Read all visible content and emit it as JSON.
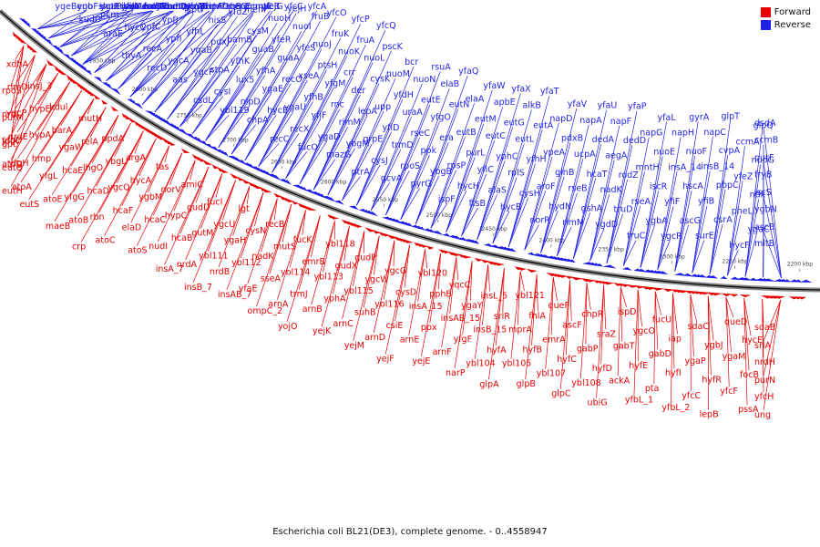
{
  "legend": {
    "forward_label": "Forward",
    "reverse_label": "Reverse",
    "forward_color": "#e60000",
    "reverse_color": "#1f1fe6"
  },
  "caption": "Escherichia coli BL21(DE3), complete genome. - 0..4558947",
  "scale_ticks": [
    "2850 kbp",
    "2800 kbp",
    "2750 kbp",
    "2700 kbp",
    "2650 kbp",
    "2600 kbp",
    "2550 kbp",
    "2500 kbp",
    "2450 kbp",
    "2400 kbp",
    "2350 kbp",
    "2300 kbp",
    "2250 kbp",
    "2200 kbp"
  ],
  "reverse_genes": [
    "yqeB",
    "kudD_2",
    "araE",
    "thyA",
    "recD",
    "aas",
    "csdL",
    "ybl119",
    "chpA",
    "recC",
    "fucO",
    "mazG",
    "ptrA",
    "gcvA",
    "pyrG",
    "ispF",
    "ftsB",
    "hycB",
    "norR",
    "rlmM",
    "ygdD",
    "truC",
    "ygcR",
    "surE",
    "hycF",
    "mltB",
    "eno",
    "pcm",
    "hycC",
    "recA",
    "ygcA",
    "ygcF",
    "cysI",
    "nlpD",
    "hycE",
    "recX",
    "ygaD",
    "ybgM",
    "cysJ",
    "rpoS",
    "ybgB",
    "hycH",
    "alaS",
    "cysH",
    "hydN",
    "gshA",
    "truD",
    "ygbA",
    "ascG",
    "csrA",
    "ygaC",
    "ascB",
    "ygbF",
    "ygaB",
    "ygbL",
    "ypfC",
    "ypfI",
    "yqaB",
    "stpA",
    "lux5",
    "ygaE",
    "ygaU",
    "yfjF",
    "rimM",
    "grpE",
    "trmD",
    "ppk",
    "rpsP",
    "yfiC",
    "rplS",
    "aroF",
    "rseB",
    "nadK",
    "rseA",
    "yfiF",
    "yfiB",
    "pheL",
    "ygbN",
    "shoB",
    "yfiH",
    "tadA",
    "ypfJ",
    "yfhL",
    "pdxJ",
    "yfhK",
    "yfhA",
    "recO",
    "yfhB",
    "rnc",
    "lepA",
    "yfiD",
    "rseC",
    "era",
    "purL",
    "yphC",
    "yfhH",
    "glnB",
    "hcaT",
    "rodZ",
    "iscR",
    "hscA",
    "pbpC",
    "ndk",
    "iscS",
    "iscU",
    "iscA",
    "hscB",
    "fdx",
    "ispG",
    "hisS",
    "bamB",
    "guaB",
    "guaA",
    "xseA",
    "yfgM",
    "der",
    "upp",
    "uraA",
    "yfgO",
    "eutB",
    "eutC",
    "eutL",
    "ypeA",
    "ucpA",
    "aegA",
    "mntH",
    "insA_14",
    "insB_14",
    "yfeZ",
    "fryB",
    "dapA",
    "eutP",
    "eutQ",
    "cysW",
    "zipA",
    "yfdZ",
    "cysM",
    "yfeR",
    "yfeS",
    "ptsH",
    "crr",
    "cysK",
    "yfdH",
    "eutE",
    "eutN",
    "eutM",
    "eutG",
    "eutA",
    "pdxB",
    "dedA",
    "dedD",
    "nuoE",
    "nuoF",
    "cvpA",
    "nuoG",
    "purF",
    "ubiX",
    "menD",
    "menH",
    "menB",
    "menC",
    "menE",
    "menF",
    "nuoH",
    "nuoI",
    "nuoJ",
    "nuoK",
    "nuoL",
    "nuoM",
    "nuoN",
    "elaB",
    "elaA",
    "apbE",
    "alkB",
    "napD",
    "napA",
    "napF",
    "napG",
    "napH",
    "napC",
    "ccmA",
    "ccmB",
    "ccmC",
    "ccmD",
    "ccmE",
    "ccmF",
    "ccmG",
    "ccmH",
    "yejG",
    "yejH",
    "fruB",
    "fruK",
    "fruA",
    "pscK",
    "bcr",
    "rsuA",
    "yfaQ",
    "yfaW",
    "yfaX",
    "yfaT",
    "yfaV",
    "yfaU",
    "yfaP",
    "yfaL",
    "gyrA",
    "glpT",
    "glpQ",
    "dsdA",
    "fadJ",
    "fadI",
    "yfcZ",
    "yfcJ",
    "fabB",
    "mnmC",
    "yfcB",
    "yfcC",
    "yfcA",
    "yfcO",
    "yfcP",
    "yfcQ"
  ],
  "forward_genes": [
    "xdhA",
    "insJ_3",
    "kdul",
    "mutH",
    "ppdA",
    "argA",
    "tas",
    "amiC",
    "fucI",
    "lgt",
    "recB",
    "fucK",
    "ybl118",
    "gudP",
    "ygcG",
    "ybl120",
    "yqcC",
    "insL_5",
    "ybl121",
    "queF",
    "chpR",
    "ispD",
    "fucU",
    "sdaC",
    "queD",
    "sdaB",
    "rlmD",
    "hypE",
    "barA",
    "relA",
    "ybgL",
    "hycA",
    "norV",
    "gudD",
    "ygcU",
    "cysN",
    "mutS",
    "emrB",
    "gudX",
    "ygcW",
    "cysD",
    "pphB",
    "ygaY",
    "srlR",
    "fhlA",
    "ascF",
    "sraZ",
    "ygcO",
    "iap",
    "ygbJ",
    "hycE",
    "srlA",
    "rpoS",
    "ygcP",
    "hypA",
    "ygaW",
    "lhgO",
    "ygcQ",
    "ygbM",
    "hypC",
    "gutM",
    "ygaH",
    "nadK",
    "ybl114",
    "ybl113",
    "ybl115",
    "ybl116",
    "insA_15",
    "insAB_15",
    "insB_15",
    "mprA",
    "emrA",
    "gabP",
    "gabT",
    "gabD",
    "ygaP",
    "ygaM",
    "nrdH",
    "nrdI",
    "nrdE",
    "hmp",
    "hcaE",
    "hcaD",
    "hcaF",
    "hcaC",
    "hcaB",
    "ybl111",
    "ybl112",
    "sseA",
    "trmJ",
    "yphA",
    "suhB",
    "csiE",
    "ppx",
    "yfgF",
    "hyfA",
    "hyfB",
    "hyfC",
    "hyfD",
    "hyfE",
    "hyfI",
    "hyfR",
    "focB",
    "purN",
    "purM",
    "yfgD",
    "yfgH",
    "yfgL",
    "yfgG",
    "rbn",
    "elaD",
    "nudI",
    "nrdA",
    "nrdB",
    "yfaE",
    "arnA",
    "arnB",
    "arnC",
    "arnD",
    "arnE",
    "arnF",
    "ybl104",
    "ybl105",
    "ybl107",
    "ybl108",
    "ackA",
    "pta",
    "yfcC",
    "yfcF",
    "yfcH",
    "folX",
    "atoD",
    "atoA",
    "atoE",
    "atoB",
    "atoC",
    "atoS",
    "insA_7",
    "insB_7",
    "insAB_7",
    "ompC_2",
    "yojO",
    "yejK",
    "yejM",
    "yejF",
    "yejE",
    "narP",
    "glpA",
    "glpB",
    "glpC",
    "ubiG",
    "yfbL_1",
    "yfbL_2",
    "lepB",
    "pssA",
    "ung",
    "gpt",
    "eutQ",
    "eutH",
    "eutS",
    "maeB",
    "crp"
  ]
}
